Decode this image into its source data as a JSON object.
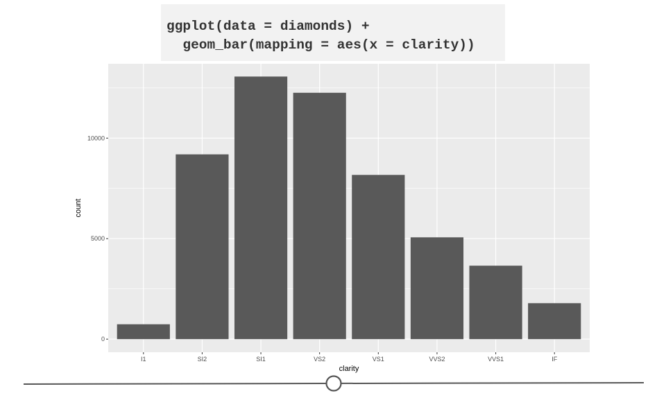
{
  "code": {
    "line1": "ggplot(data = diamonds) +",
    "line2": "  geom_bar(mapping = aes(x = clarity))"
  },
  "chart_data": {
    "type": "bar",
    "categories": [
      "I1",
      "SI2",
      "SI1",
      "VS2",
      "VS1",
      "VVS2",
      "VVS1",
      "IF"
    ],
    "values": [
      741,
      9194,
      13065,
      12258,
      8171,
      5066,
      3655,
      1790
    ],
    "xlabel": "clarity",
    "ylabel": "count",
    "ylim": [
      -650,
      13700
    ],
    "yticks": [
      0,
      5000,
      10000
    ],
    "grid": true,
    "colors": {
      "panel": "#ebebeb",
      "grid_major": "#ffffff",
      "bar": "#595959",
      "axis_text": "#4d4d4d",
      "tick": "#333333"
    }
  },
  "slider": {
    "position": 0.5,
    "line_color": "#555555"
  }
}
